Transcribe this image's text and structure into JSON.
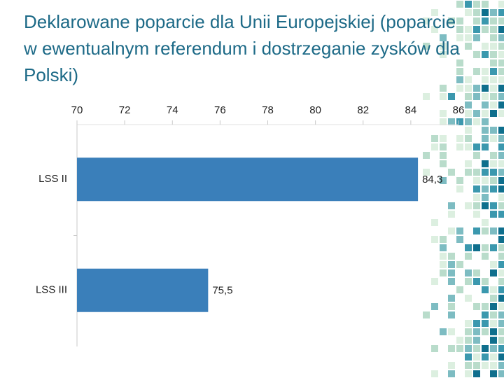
{
  "chart_data": {
    "type": "hbar",
    "title": "Deklarowane poparcie dla Unii Europejskiej (poparcie w ewentualnym referendum i dostrzeganie zysków dla Polski)",
    "categories": [
      "LSS II",
      "LSS III"
    ],
    "values": [
      84.3,
      75.5
    ],
    "value_labels": [
      "84,3",
      "75,5"
    ],
    "color": "#3a7fba",
    "xlim": [
      70,
      86
    ],
    "xticks": [
      70,
      72,
      74,
      76,
      78,
      80,
      82,
      84,
      86
    ],
    "grid": false
  }
}
